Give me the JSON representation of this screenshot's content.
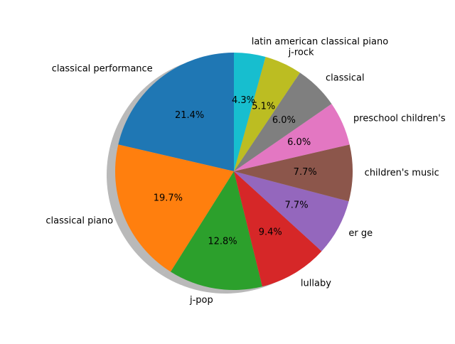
{
  "chart_data": {
    "type": "pie",
    "title": "",
    "shadow": true,
    "start_angle_deg": 90,
    "direction": "counterclockwise",
    "slices": [
      {
        "label": "classical performance",
        "value": 21.4,
        "pct_label": "21.4%",
        "color": "#1f77b4"
      },
      {
        "label": "classical piano",
        "value": 19.7,
        "pct_label": "19.7%",
        "color": "#ff7f0e"
      },
      {
        "label": "j-pop",
        "value": 12.8,
        "pct_label": "12.8%",
        "color": "#2ca02c"
      },
      {
        "label": "lullaby",
        "value": 9.4,
        "pct_label": "9.4%",
        "color": "#d62728"
      },
      {
        "label": "er ge",
        "value": 7.7,
        "pct_label": "7.7%",
        "color": "#9467bd"
      },
      {
        "label": "children's music",
        "value": 7.7,
        "pct_label": "7.7%",
        "color": "#8c564b"
      },
      {
        "label": "preschool children's",
        "value": 6.0,
        "pct_label": "6.0%",
        "color": "#e377c2"
      },
      {
        "label": "classical",
        "value": 6.0,
        "pct_label": "6.0%",
        "color": "#7f7f7f"
      },
      {
        "label": "j-rock",
        "value": 5.1,
        "pct_label": "5.1%",
        "color": "#bcbd22"
      },
      {
        "label": "latin american classical piano",
        "value": 4.3,
        "pct_label": "4.3%",
        "color": "#17becf"
      }
    ]
  }
}
